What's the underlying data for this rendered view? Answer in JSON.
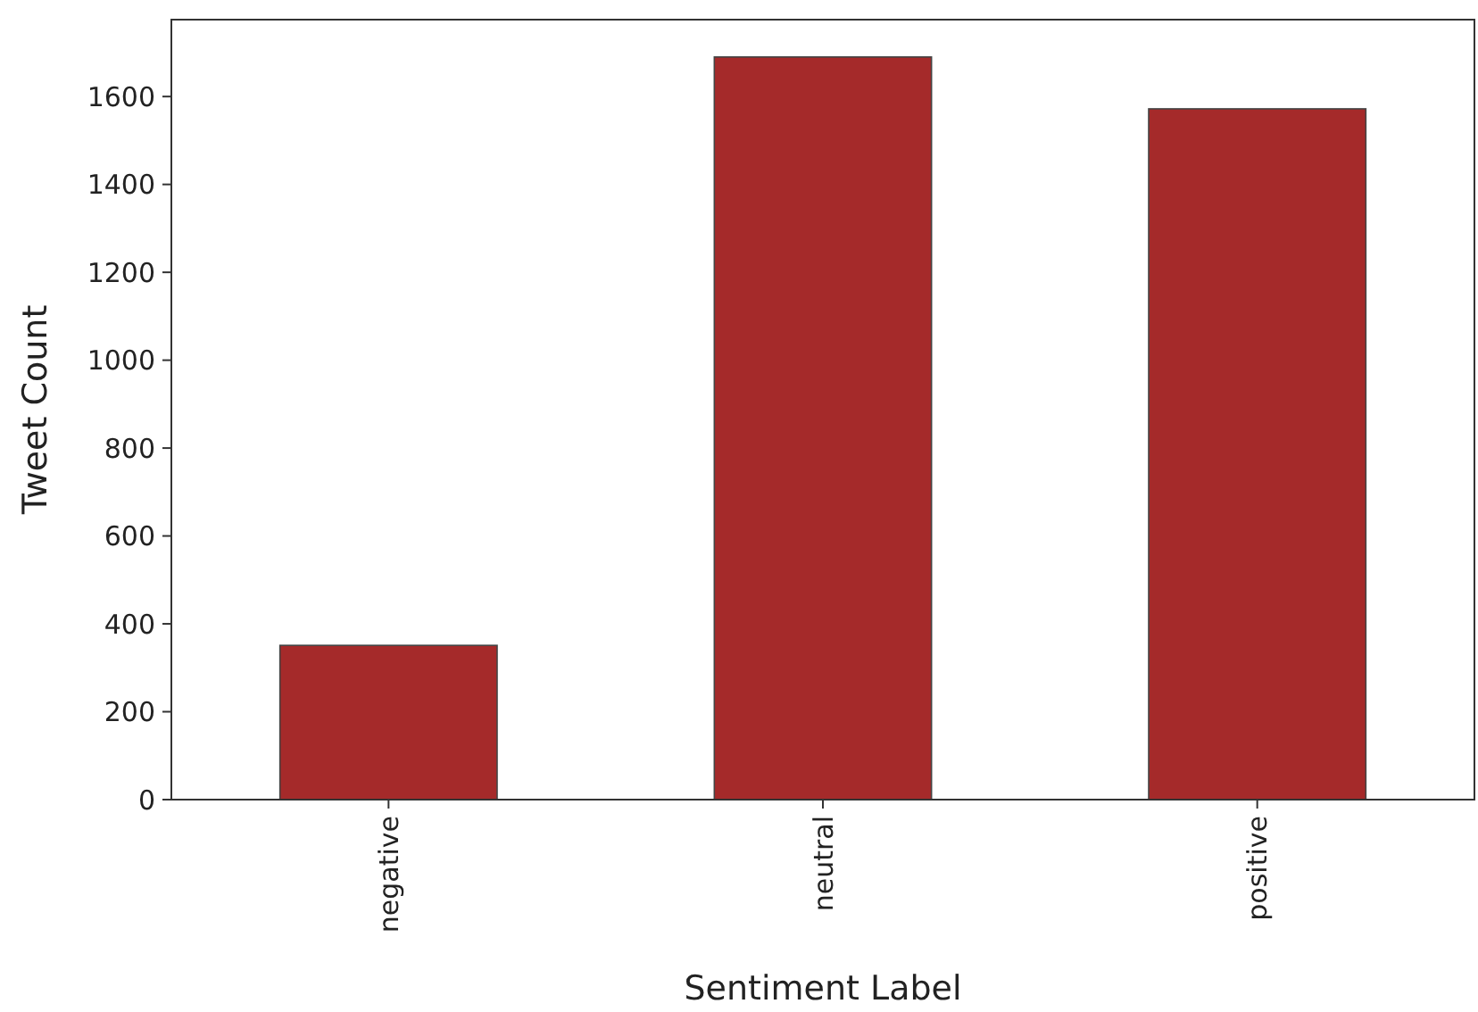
{
  "chart_data": {
    "type": "bar",
    "xlabel": "Sentiment Label",
    "ylabel": "Tweet Count",
    "categories": [
      "negative",
      "neutral",
      "positive"
    ],
    "values": [
      351,
      1690,
      1572
    ],
    "color": "#a52a2a",
    "ylim": [
      0,
      1775
    ],
    "yticks": [
      0,
      200,
      400,
      600,
      800,
      1000,
      1200,
      1400,
      1600
    ],
    "grid": false
  }
}
